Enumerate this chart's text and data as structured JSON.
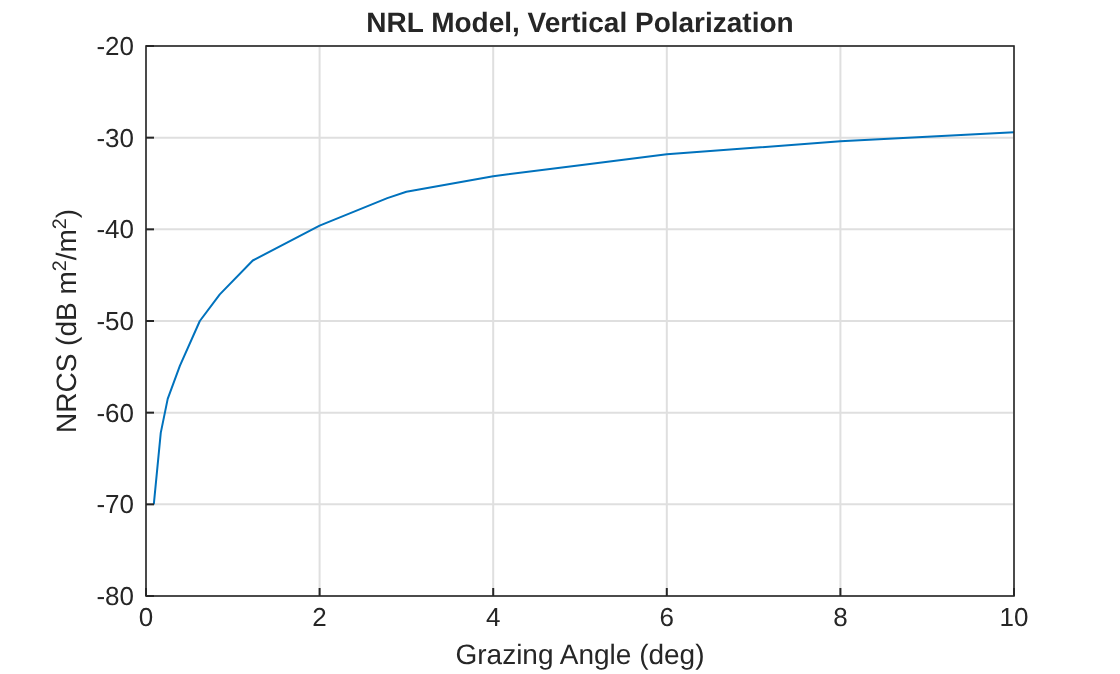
{
  "chart_data": {
    "type": "line",
    "title": "NRL Model, Vertical Polarization",
    "xlabel": "Grazing Angle (deg)",
    "ylabel": "NRCS (dB m$^{2}$/m$^{2}$)",
    "xlim": [
      0,
      10
    ],
    "ylim": [
      -80,
      -20
    ],
    "xticks": [
      0,
      2,
      4,
      6,
      8,
      10
    ],
    "yticks": [
      -80,
      -70,
      -60,
      -50,
      -40,
      -30,
      -20
    ],
    "grid": true,
    "line_style": "solid",
    "marker": "none",
    "series": [
      {
        "color": "#0072bd",
        "x": [
          0.09,
          0.17,
          0.25,
          0.39,
          0.62,
          0.85,
          1.23,
          2,
          2.78,
          3,
          4,
          5,
          6,
          7,
          8,
          9,
          10
        ],
        "values": [
          -70,
          -62.2,
          -58.5,
          -54.9,
          -50,
          -47.1,
          -43.4,
          -39.6,
          -36.6,
          -35.9,
          -34.2,
          -33,
          -31.8,
          -31.1,
          -30.4,
          -29.9,
          -29.4
        ]
      }
    ]
  }
}
